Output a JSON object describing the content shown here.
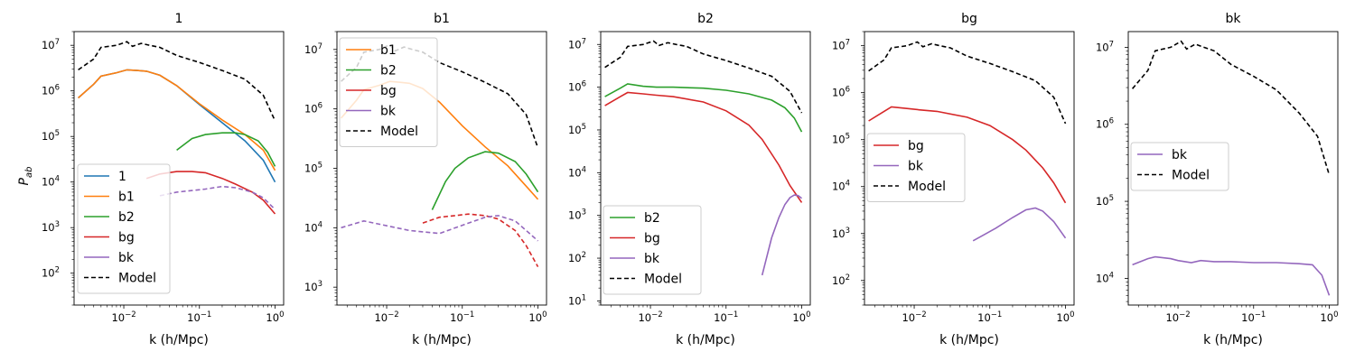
{
  "figure": {
    "ylabel_tex": "P",
    "ylabel_sub": "ab"
  },
  "chart_data": [
    {
      "type": "line",
      "title": "1",
      "xlabel": "k (h/Mpc)",
      "xscale": "log",
      "yscale": "log",
      "xlim": [
        0.0022,
        1.3
      ],
      "ylim": [
        20,
        20000000
      ],
      "legend": "lower-left",
      "legend_entries": [
        {
          "label": "1",
          "color": "#1f77b4",
          "style": "solid"
        },
        {
          "label": "b1",
          "color": "#ff7f0e",
          "style": "solid"
        },
        {
          "label": "b2",
          "color": "#2ca02c",
          "style": "solid"
        },
        {
          "label": "bg",
          "color": "#d62728",
          "style": "solid"
        },
        {
          "label": "bk",
          "color": "#9467bd",
          "style": "solid"
        },
        {
          "label": "Model",
          "color": "#000000",
          "style": "dashed"
        }
      ],
      "series": [
        {
          "name": "Model",
          "color": "#000000",
          "style": "dashed",
          "x": [
            0.0025,
            0.004,
            0.005,
            0.008,
            0.011,
            0.013,
            0.017,
            0.022,
            0.03,
            0.05,
            0.1,
            0.2,
            0.4,
            0.7,
            1.0
          ],
          "y": [
            2900000,
            5000000,
            9000000,
            10000000,
            12000000,
            9500000,
            11000000,
            10000000,
            9000000,
            6000000,
            4200000,
            2800000,
            1800000,
            800000,
            220000
          ]
        },
        {
          "name": "1",
          "color": "#1f77b4",
          "style": "solid",
          "x": [
            0.0025,
            0.004,
            0.005,
            0.008,
            0.011,
            0.015,
            0.02,
            0.03,
            0.05,
            0.1,
            0.2,
            0.4,
            0.7,
            1.0
          ],
          "y": [
            700000,
            1400000,
            2100000,
            2500000,
            2900000,
            2800000,
            2700000,
            2200000,
            1300000,
            500000,
            200000,
            80000,
            30000,
            10000
          ]
        },
        {
          "name": "b1",
          "color": "#ff7f0e",
          "style": "solid",
          "x": [
            0.0025,
            0.004,
            0.005,
            0.008,
            0.011,
            0.015,
            0.02,
            0.03,
            0.05,
            0.1,
            0.2,
            0.4,
            0.7,
            1.0
          ],
          "y": [
            700000,
            1400000,
            2100000,
            2500000,
            2900000,
            2800000,
            2700000,
            2200000,
            1300000,
            520000,
            230000,
            110000,
            50000,
            18000
          ]
        },
        {
          "name": "b2",
          "color": "#2ca02c",
          "style": "solid",
          "x": [
            0.05,
            0.08,
            0.12,
            0.2,
            0.3,
            0.4,
            0.6,
            0.8,
            1.0
          ],
          "y": [
            50000,
            90000,
            110000,
            120000,
            120000,
            110000,
            80000,
            45000,
            22000
          ]
        },
        {
          "name": "bg",
          "color": "#d62728",
          "style": "solid",
          "x": [
            0.02,
            0.03,
            0.05,
            0.08,
            0.12,
            0.2,
            0.3,
            0.5,
            0.7,
            1.0
          ],
          "y": [
            12000,
            15000,
            17000,
            17000,
            16000,
            12000,
            9000,
            6000,
            4000,
            2000
          ]
        },
        {
          "name": "bk",
          "color": "#9467bd",
          "style": "dashed",
          "x": [
            0.03,
            0.05,
            0.08,
            0.12,
            0.2,
            0.3,
            0.5,
            0.7,
            1.0
          ],
          "y": [
            5000,
            6000,
            6500,
            7000,
            8000,
            7500,
            6000,
            4500,
            2500
          ]
        }
      ]
    },
    {
      "type": "line",
      "title": "b1",
      "xlabel": "k (h/Mpc)",
      "xscale": "log",
      "yscale": "log",
      "xlim": [
        0.0022,
        1.3
      ],
      "ylim": [
        500,
        20000000
      ],
      "legend": "upper-left",
      "legend_entries": [
        {
          "label": "b1",
          "color": "#ff7f0e",
          "style": "solid"
        },
        {
          "label": "b2",
          "color": "#2ca02c",
          "style": "solid"
        },
        {
          "label": "bg",
          "color": "#d62728",
          "style": "solid"
        },
        {
          "label": "bk",
          "color": "#9467bd",
          "style": "solid"
        },
        {
          "label": "Model",
          "color": "#000000",
          "style": "dashed"
        }
      ],
      "series": [
        {
          "name": "Model",
          "color": "#000000",
          "style": "dashed",
          "x": [
            0.0025,
            0.004,
            0.005,
            0.008,
            0.011,
            0.013,
            0.017,
            0.022,
            0.03,
            0.05,
            0.1,
            0.2,
            0.4,
            0.7,
            1.0
          ],
          "y": [
            2900000,
            5000000,
            9000000,
            10000000,
            12000000,
            9500000,
            11000000,
            10000000,
            9000000,
            6000000,
            4200000,
            2800000,
            1800000,
            800000,
            220000
          ]
        },
        {
          "name": "b1",
          "color": "#ff7f0e",
          "style": "solid",
          "x": [
            0.0025,
            0.004,
            0.005,
            0.008,
            0.011,
            0.015,
            0.02,
            0.03,
            0.05,
            0.1,
            0.2,
            0.4,
            0.7,
            1.0
          ],
          "y": [
            700000,
            1400000,
            2100000,
            2500000,
            2900000,
            2800000,
            2700000,
            2200000,
            1300000,
            520000,
            230000,
            110000,
            50000,
            30000
          ]
        },
        {
          "name": "b2",
          "color": "#2ca02c",
          "style": "solid",
          "x": [
            0.04,
            0.06,
            0.08,
            0.12,
            0.2,
            0.3,
            0.5,
            0.7,
            1.0
          ],
          "y": [
            20000,
            60000,
            100000,
            150000,
            190000,
            180000,
            130000,
            80000,
            40000
          ]
        },
        {
          "name": "bg",
          "color": "#d62728",
          "style": "dashed",
          "x": [
            0.03,
            0.05,
            0.08,
            0.12,
            0.2,
            0.3,
            0.5,
            0.7,
            1.0
          ],
          "y": [
            12000,
            15000,
            16000,
            17000,
            16000,
            14000,
            9000,
            5000,
            2200
          ]
        },
        {
          "name": "bk",
          "color": "#9467bd",
          "style": "dashed",
          "x": [
            0.0025,
            0.005,
            0.02,
            0.05,
            0.1,
            0.2,
            0.3,
            0.5,
            0.7,
            1.0
          ],
          "y": [
            10000,
            13000,
            9000,
            8000,
            11000,
            15000,
            16000,
            13000,
            9000,
            6000
          ]
        }
      ]
    },
    {
      "type": "line",
      "title": "b2",
      "xlabel": "k (h/Mpc)",
      "xscale": "log",
      "yscale": "log",
      "xlim": [
        0.0022,
        1.3
      ],
      "ylim": [
        8,
        20000000
      ],
      "legend": "lower-left",
      "legend_entries": [
        {
          "label": "b2",
          "color": "#2ca02c",
          "style": "solid"
        },
        {
          "label": "bg",
          "color": "#d62728",
          "style": "solid"
        },
        {
          "label": "bk",
          "color": "#9467bd",
          "style": "solid"
        },
        {
          "label": "Model",
          "color": "#000000",
          "style": "dashed"
        }
      ],
      "series": [
        {
          "name": "Model",
          "color": "#000000",
          "style": "dashed",
          "x": [
            0.0025,
            0.004,
            0.005,
            0.008,
            0.011,
            0.013,
            0.017,
            0.022,
            0.03,
            0.05,
            0.1,
            0.2,
            0.4,
            0.7,
            1.0
          ],
          "y": [
            2900000,
            5000000,
            9000000,
            10000000,
            12000000,
            9500000,
            11000000,
            10000000,
            9000000,
            6000000,
            4200000,
            2800000,
            1800000,
            800000,
            250000
          ]
        },
        {
          "name": "b2",
          "color": "#2ca02c",
          "style": "solid",
          "x": [
            0.0025,
            0.004,
            0.005,
            0.008,
            0.012,
            0.02,
            0.05,
            0.1,
            0.2,
            0.4,
            0.6,
            0.8,
            1.0
          ],
          "y": [
            600000,
            950000,
            1200000,
            1050000,
            1000000,
            1000000,
            950000,
            850000,
            700000,
            500000,
            330000,
            190000,
            90000
          ]
        },
        {
          "name": "bg",
          "color": "#d62728",
          "style": "solid",
          "x": [
            0.0025,
            0.004,
            0.005,
            0.008,
            0.012,
            0.02,
            0.05,
            0.1,
            0.2,
            0.3,
            0.5,
            0.7,
            1.0
          ],
          "y": [
            370000,
            600000,
            750000,
            700000,
            650000,
            600000,
            450000,
            280000,
            130000,
            60000,
            15000,
            5000,
            2000
          ]
        },
        {
          "name": "bk",
          "color": "#9467bd",
          "style": "solid",
          "x": [
            0.3,
            0.4,
            0.5,
            0.6,
            0.7,
            0.8,
            0.9,
            1.0
          ],
          "y": [
            40,
            300,
            900,
            1800,
            2600,
            3000,
            2900,
            2500
          ]
        }
      ]
    },
    {
      "type": "line",
      "title": "bg",
      "xlabel": "k (h/Mpc)",
      "xscale": "log",
      "yscale": "log",
      "xlim": [
        0.0022,
        1.3
      ],
      "ylim": [
        30,
        20000000
      ],
      "legend": "center-left",
      "legend_entries": [
        {
          "label": "bg",
          "color": "#d62728",
          "style": "solid"
        },
        {
          "label": "bk",
          "color": "#9467bd",
          "style": "solid"
        },
        {
          "label": "Model",
          "color": "#000000",
          "style": "dashed"
        }
      ],
      "series": [
        {
          "name": "Model",
          "color": "#000000",
          "style": "dashed",
          "x": [
            0.0025,
            0.004,
            0.005,
            0.008,
            0.011,
            0.013,
            0.017,
            0.022,
            0.03,
            0.05,
            0.1,
            0.2,
            0.4,
            0.7,
            1.0
          ],
          "y": [
            2900000,
            5000000,
            9000000,
            10000000,
            12000000,
            9500000,
            11000000,
            10000000,
            9000000,
            6000000,
            4200000,
            2800000,
            1800000,
            800000,
            220000
          ]
        },
        {
          "name": "bg",
          "color": "#d62728",
          "style": "solid",
          "x": [
            0.0025,
            0.004,
            0.005,
            0.008,
            0.012,
            0.02,
            0.05,
            0.1,
            0.2,
            0.3,
            0.5,
            0.7,
            1.0
          ],
          "y": [
            250000,
            400000,
            500000,
            460000,
            430000,
            400000,
            300000,
            200000,
            100000,
            60000,
            25000,
            12000,
            4500
          ]
        },
        {
          "name": "bk",
          "color": "#9467bd",
          "style": "solid",
          "x": [
            0.06,
            0.08,
            0.12,
            0.2,
            0.3,
            0.4,
            0.5,
            0.7,
            1.0
          ],
          "y": [
            700,
            900,
            1300,
            2200,
            3200,
            3500,
            3000,
            1800,
            800
          ]
        }
      ]
    },
    {
      "type": "line",
      "title": "bk",
      "xlabel": "k (h/Mpc)",
      "xscale": "log",
      "yscale": "log",
      "xlim": [
        0.0022,
        1.3
      ],
      "ylim": [
        4500,
        16000000
      ],
      "legend": "center-left",
      "legend_entries": [
        {
          "label": "bk",
          "color": "#9467bd",
          "style": "solid"
        },
        {
          "label": "Model",
          "color": "#000000",
          "style": "dashed"
        }
      ],
      "series": [
        {
          "name": "Model",
          "color": "#000000",
          "style": "dashed",
          "x": [
            0.0025,
            0.004,
            0.005,
            0.008,
            0.011,
            0.013,
            0.017,
            0.022,
            0.03,
            0.05,
            0.1,
            0.2,
            0.4,
            0.7,
            1.0
          ],
          "y": [
            2900000,
            5000000,
            9000000,
            10000000,
            12000000,
            9500000,
            11000000,
            10000000,
            9000000,
            6000000,
            4200000,
            2800000,
            1400000,
            700000,
            220000
          ]
        },
        {
          "name": "bk",
          "color": "#9467bd",
          "style": "solid",
          "x": [
            0.0025,
            0.004,
            0.005,
            0.008,
            0.01,
            0.015,
            0.02,
            0.03,
            0.05,
            0.1,
            0.2,
            0.4,
            0.6,
            0.8,
            1.0
          ],
          "y": [
            15000,
            18000,
            19000,
            18000,
            17000,
            16000,
            17000,
            16500,
            16500,
            16000,
            16000,
            15500,
            15000,
            11000,
            6000
          ]
        }
      ]
    }
  ]
}
